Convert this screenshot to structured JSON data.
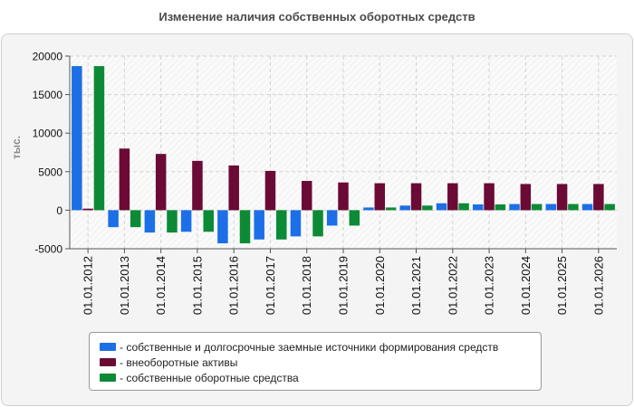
{
  "title": "Изменение наличия собственных оборотных средств",
  "chart_data": {
    "type": "bar",
    "ylabel": "тыс.",
    "xlabel": "",
    "ylim": [
      -5000,
      20000
    ],
    "yticks": [
      -5000,
      0,
      5000,
      10000,
      15000,
      20000
    ],
    "grid": true,
    "legend_position": "bottom",
    "categories": [
      "01.01.2012",
      "01.01.2013",
      "01.01.2014",
      "01.01.2015",
      "01.01.2016",
      "01.01.2017",
      "01.01.2018",
      "01.01.2019",
      "01.01.2020",
      "01.01.2021",
      "01.01.2022",
      "01.01.2023",
      "01.01.2024",
      "01.01.2025",
      "01.01.2026"
    ],
    "series": [
      {
        "name": "- собственные и долгосрочные заемные источники формирования средств",
        "color": "#1c6fe6",
        "values": [
          18700,
          -2200,
          -2900,
          -2800,
          -4300,
          -3800,
          -3400,
          -2000,
          350,
          600,
          900,
          750,
          800,
          800,
          800
        ]
      },
      {
        "name": "- внеоборотные активы",
        "color": "#6a0a35",
        "values": [
          200,
          8000,
          7300,
          6400,
          5800,
          5100,
          3800,
          3600,
          3500,
          3500,
          3500,
          3500,
          3400,
          3400,
          3400
        ]
      },
      {
        "name": "- собственные оборотные средства",
        "color": "#0d8a36",
        "values": [
          18700,
          -2200,
          -2900,
          -2800,
          -4300,
          -3800,
          -3400,
          -2000,
          350,
          600,
          900,
          750,
          800,
          800,
          800
        ]
      }
    ]
  }
}
